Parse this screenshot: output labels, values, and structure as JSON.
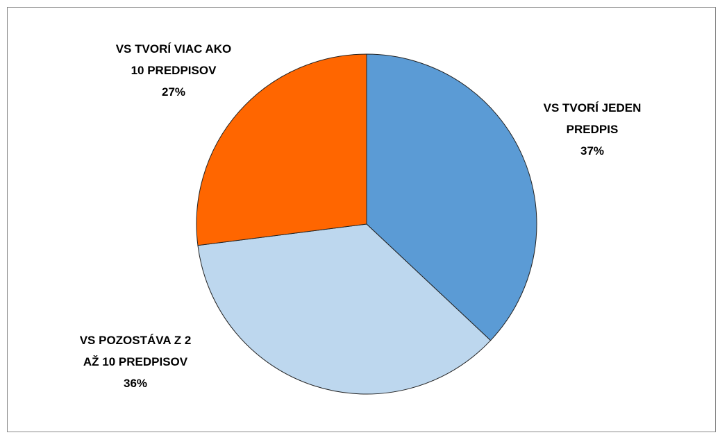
{
  "chart_data": {
    "type": "pie",
    "categories": [
      "VS TVORÍ JEDEN PREDPIS",
      "VS POZOSTÁVA Z 2 AŽ 10 PREDPISOV",
      "VS TVORÍ VIAC AKO 10 PREDPISOV"
    ],
    "values": [
      37,
      36,
      27
    ],
    "value_labels": [
      "37%",
      "36%",
      "27%"
    ],
    "colors": [
      "#5b9bd5",
      "#bdd7ee",
      "#ff6600"
    ]
  }
}
